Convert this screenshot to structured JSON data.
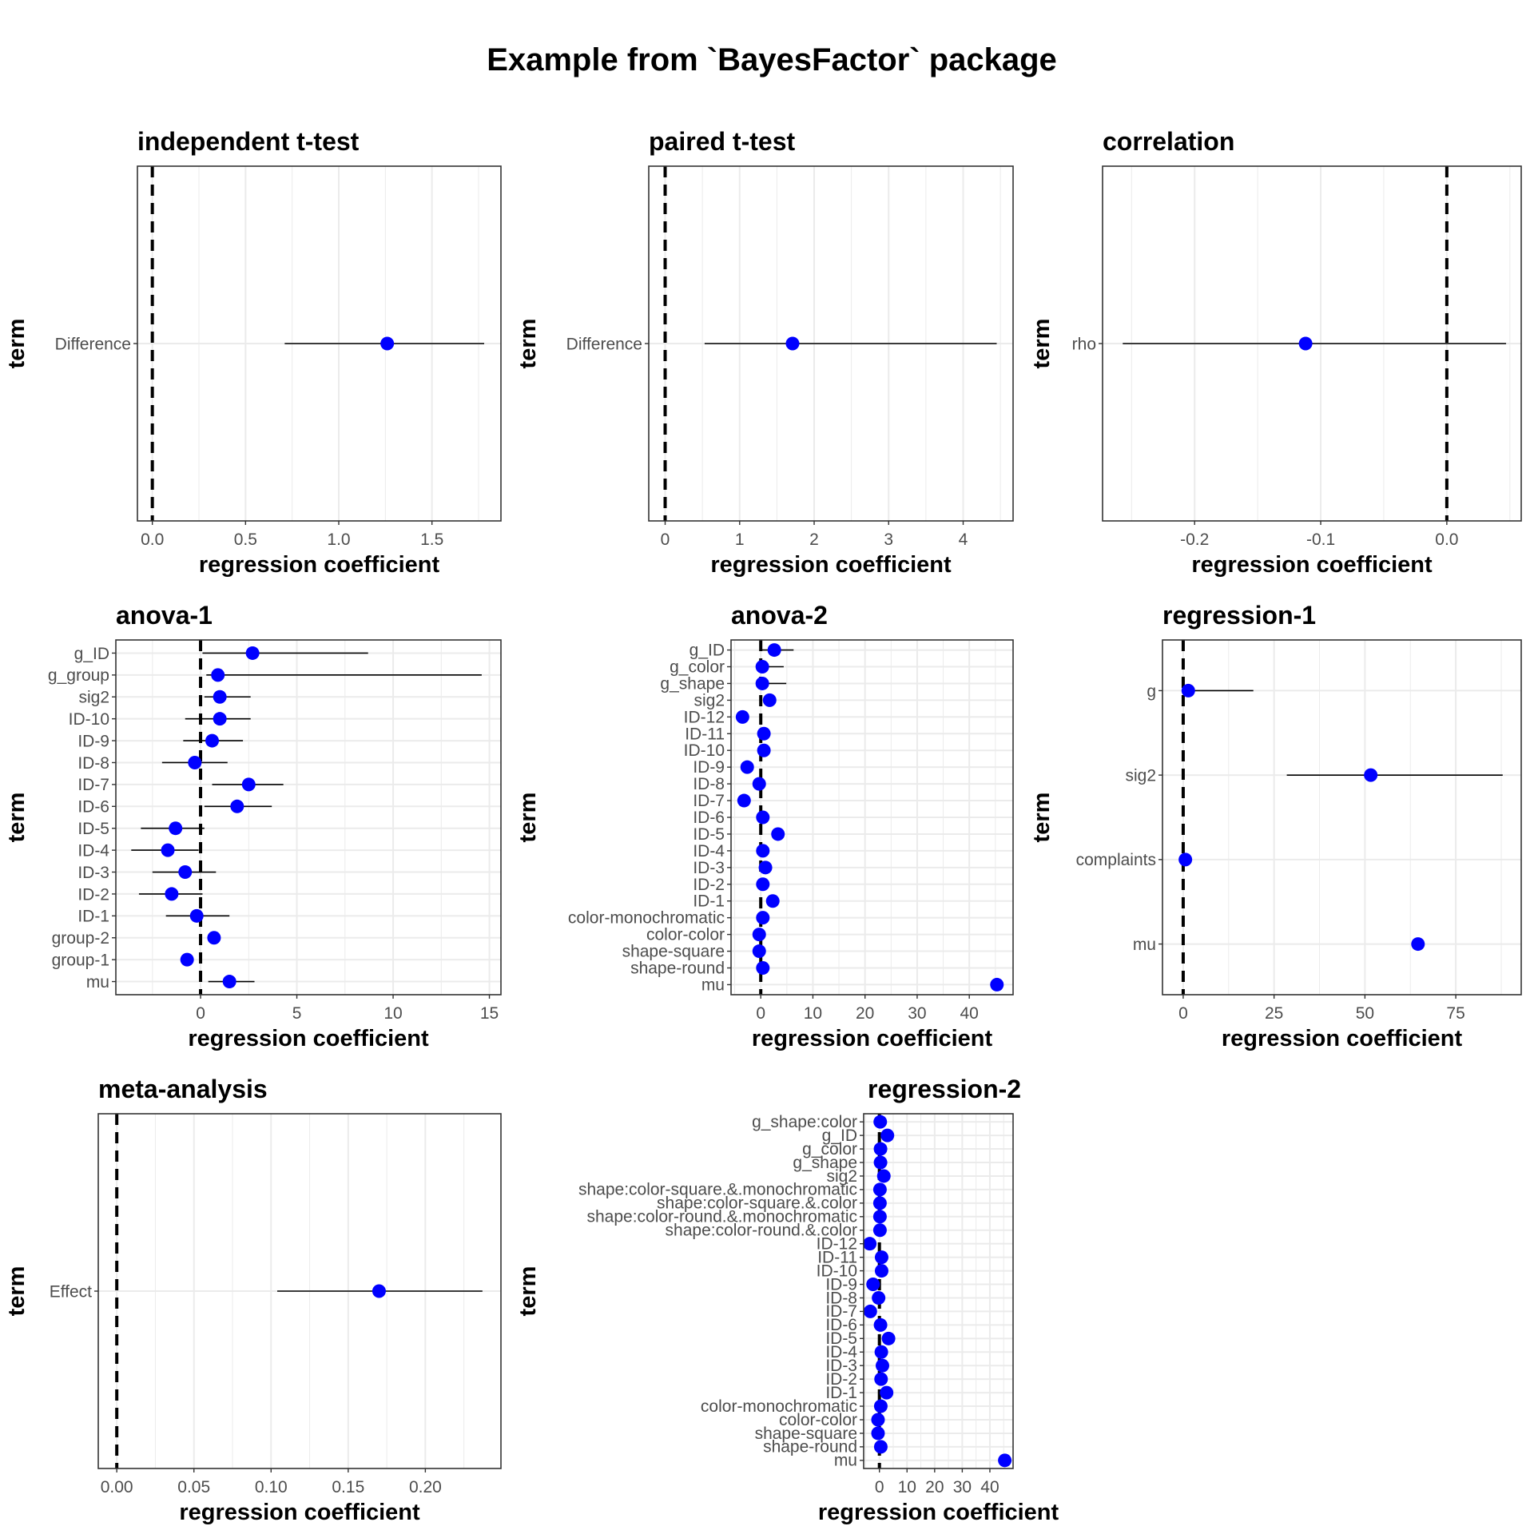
{
  "title": "Example from `BayesFactor` package",
  "colors": {
    "point": "#0000ff",
    "interval": "#000000",
    "refline": "#000000",
    "grid": "#ebebeb",
    "border": "#333333"
  },
  "chart_data": [
    {
      "type": "scatter",
      "title": "independent t-test",
      "xlabel": "regression coefficient",
      "ylabel": "term",
      "xlim": [
        -0.08,
        1.87
      ],
      "xticks": [
        0,
        0.5,
        1,
        1.5
      ],
      "xtick_labels": [
        "0.0",
        "0.5",
        "1.0",
        "1.5"
      ],
      "refline_x": 0,
      "grid": true,
      "terms": [
        "Difference"
      ],
      "estimates": [
        1.26
      ],
      "ci_low": [
        0.71
      ],
      "ci_high": [
        1.78
      ]
    },
    {
      "type": "scatter",
      "title": "paired t-test",
      "xlabel": "regression coefficient",
      "ylabel": "term",
      "xlim": [
        -0.22,
        4.67
      ],
      "xticks": [
        0,
        1,
        2,
        3,
        4
      ],
      "xtick_labels": [
        "0",
        "1",
        "2",
        "3",
        "4"
      ],
      "refline_x": 0,
      "grid": true,
      "terms": [
        "Difference"
      ],
      "estimates": [
        1.71
      ],
      "ci_low": [
        0.53
      ],
      "ci_high": [
        4.45
      ]
    },
    {
      "type": "scatter",
      "title": "correlation",
      "xlabel": "regression coefficient",
      "ylabel": "term",
      "xlim": [
        -0.273,
        0.059
      ],
      "xticks": [
        -0.2,
        -0.1,
        0
      ],
      "xtick_labels": [
        "-0.2",
        "-0.1",
        "0.0"
      ],
      "refline_x": 0,
      "grid": true,
      "terms": [
        "rho"
      ],
      "estimates": [
        -0.112
      ],
      "ci_low": [
        -0.257
      ],
      "ci_high": [
        0.047
      ]
    },
    {
      "type": "scatter",
      "title": "anova-1",
      "xlabel": "regression coefficient",
      "ylabel": "term",
      "xlim": [
        -4.4,
        15.6
      ],
      "xticks": [
        0,
        5,
        10,
        15
      ],
      "xtick_labels": [
        "0",
        "5",
        "10",
        "15"
      ],
      "refline_x": 0,
      "grid": true,
      "terms": [
        "g_ID",
        "g_group",
        "sig2",
        "ID-10",
        "ID-9",
        "ID-8",
        "ID-7",
        "ID-6",
        "ID-5",
        "ID-4",
        "ID-3",
        "ID-2",
        "ID-1",
        "group-2",
        "group-1",
        "mu"
      ],
      "estimates": [
        2.7,
        0.9,
        1.0,
        1.0,
        0.6,
        -0.3,
        2.5,
        1.9,
        -1.3,
        -1.7,
        -0.8,
        -1.5,
        -0.2,
        0.7,
        -0.7,
        1.5
      ],
      "ci_low": [
        0.1,
        0.3,
        0.2,
        -0.8,
        -0.9,
        -2.0,
        0.6,
        0.2,
        -3.1,
        -3.6,
        -2.5,
        -3.2,
        -1.8,
        null,
        null,
        0.4
      ],
      "ci_high": [
        8.7,
        14.6,
        2.6,
        2.6,
        2.2,
        1.4,
        4.3,
        3.7,
        0.2,
        -0.1,
        0.8,
        0.1,
        1.5,
        null,
        null,
        2.8
      ]
    },
    {
      "type": "scatter",
      "title": "anova-2",
      "xlabel": "regression coefficient",
      "ylabel": "term",
      "xlim": [
        -5.7,
        48.4
      ],
      "xticks": [
        0,
        10,
        20,
        30,
        40
      ],
      "xtick_labels": [
        "0",
        "10",
        "20",
        "30",
        "40"
      ],
      "refline_x": 0,
      "grid": true,
      "terms": [
        "g_ID",
        "g_color",
        "g_shape",
        "sig2",
        "ID-12",
        "ID-11",
        "ID-10",
        "ID-9",
        "ID-8",
        "ID-7",
        "ID-6",
        "ID-5",
        "ID-4",
        "ID-3",
        "ID-2",
        "ID-1",
        "color-monochromatic",
        "color-color",
        "shape-square",
        "shape-round",
        "mu"
      ],
      "estimates": [
        2.6,
        0.3,
        0.3,
        1.7,
        -3.5,
        0.6,
        0.6,
        -2.6,
        -0.3,
        -3.2,
        0.4,
        3.3,
        0.4,
        0.9,
        0.4,
        2.3,
        0.4,
        -0.3,
        -0.3,
        0.4,
        45.3
      ],
      "ci_low": [
        0.2,
        0.1,
        0.1,
        null,
        null,
        null,
        null,
        null,
        null,
        null,
        null,
        null,
        null,
        null,
        null,
        null,
        null,
        null,
        null,
        null,
        null
      ],
      "ci_high": [
        6.3,
        4.4,
        4.9,
        null,
        null,
        null,
        null,
        null,
        null,
        null,
        null,
        null,
        null,
        null,
        null,
        null,
        null,
        null,
        null,
        null,
        null
      ]
    },
    {
      "type": "scatter",
      "title": "regression-1",
      "xlabel": "regression coefficient",
      "ylabel": "term",
      "xlim": [
        -5.7,
        93.0
      ],
      "xticks": [
        0,
        25,
        50,
        75
      ],
      "xtick_labels": [
        "0",
        "25",
        "50",
        "75"
      ],
      "refline_x": 0,
      "grid": true,
      "terms": [
        "g",
        "sig2",
        "complaints",
        "mu"
      ],
      "estimates": [
        1.4,
        51.6,
        0.6,
        64.6
      ],
      "ci_low": [
        0.2,
        28.5,
        null,
        63.3
      ],
      "ci_high": [
        19.3,
        87.9,
        null,
        66.0
      ]
    },
    {
      "type": "scatter",
      "title": "meta-analysis",
      "xlabel": "regression coefficient",
      "ylabel": "term",
      "xlim": [
        -0.012,
        0.249
      ],
      "xticks": [
        0,
        0.05,
        0.1,
        0.15,
        0.2
      ],
      "xtick_labels": [
        "0.00",
        "0.05",
        "0.10",
        "0.15",
        "0.20"
      ],
      "refline_x": 0,
      "grid": true,
      "terms": [
        "Effect"
      ],
      "estimates": [
        0.17
      ],
      "ci_low": [
        0.104
      ],
      "ci_high": [
        0.237
      ]
    },
    {
      "type": "scatter",
      "title": "regression-2",
      "xlabel": "regression coefficient",
      "ylabel": "term",
      "xlim": [
        -5.7,
        48.4
      ],
      "xticks": [
        0,
        10,
        20,
        30,
        40
      ],
      "xtick_labels": [
        "0",
        "10",
        "20",
        "30",
        "40"
      ],
      "refline_x": 0,
      "grid": true,
      "terms": [
        "g_shape:color",
        "g_ID",
        "g_color",
        "g_shape",
        "sig2",
        "shape:color-square.&.monochromatic",
        "shape:color-square.&.color",
        "shape:color-round.&.monochromatic",
        "shape:color-round.&.color",
        "ID-12",
        "ID-11",
        "ID-10",
        "ID-9",
        "ID-8",
        "ID-7",
        "ID-6",
        "ID-5",
        "ID-4",
        "ID-3",
        "ID-2",
        "ID-1",
        "color-monochromatic",
        "color-color",
        "shape-square",
        "shape-round",
        "mu"
      ],
      "estimates": [
        0.3,
        2.9,
        0.4,
        0.4,
        1.6,
        0.2,
        0.2,
        0.2,
        0.2,
        -3.5,
        0.8,
        0.8,
        -2.3,
        -0.3,
        -3.3,
        0.4,
        3.3,
        0.7,
        1.1,
        0.6,
        2.6,
        0.5,
        -0.5,
        -0.5,
        0.5,
        45.4
      ],
      "ci_low": [
        null,
        null,
        null,
        null,
        null,
        null,
        null,
        null,
        null,
        null,
        null,
        null,
        null,
        null,
        null,
        null,
        null,
        null,
        null,
        null,
        null,
        null,
        null,
        null,
        null,
        null
      ],
      "ci_high": [
        null,
        null,
        null,
        null,
        null,
        null,
        null,
        null,
        null,
        null,
        null,
        null,
        null,
        null,
        null,
        null,
        null,
        null,
        null,
        null,
        null,
        null,
        null,
        null,
        null,
        null
      ]
    }
  ]
}
